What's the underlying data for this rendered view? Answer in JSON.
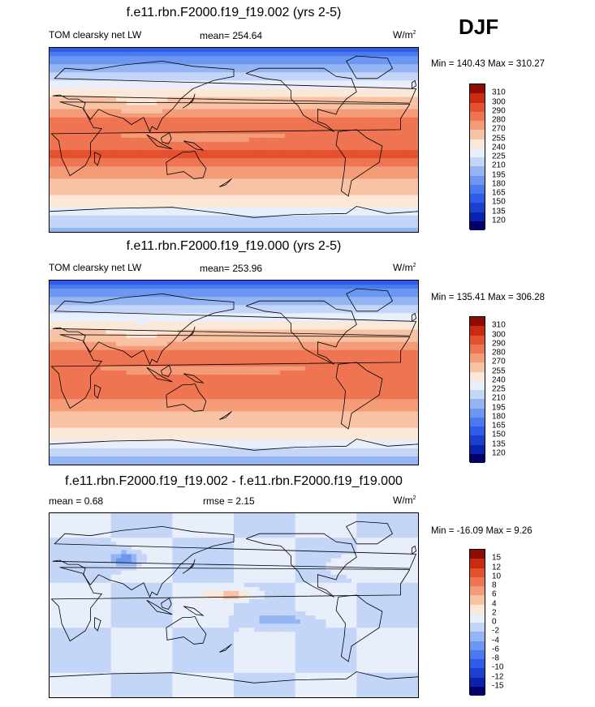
{
  "season": "DJF",
  "unit_base": "W/m",
  "unit_exp": "2",
  "panels": [
    {
      "title": "f.e11.rbn.F2000.f19_f19.002 (yrs 2-5)",
      "left_label": "TOM clearsky net LW",
      "center_label": "mean= 254.64",
      "minmax": "Min = 140.43 Max = 310.27"
    },
    {
      "title": "f.e11.rbn.F2000.f19_f19.000 (yrs 2-5)",
      "left_label": "TOM clearsky net LW",
      "center_label": "mean= 253.96",
      "minmax": "Min = 135.41 Max = 306.28"
    },
    {
      "title": "f.e11.rbn.F2000.f19_f19.002 - f.e11.rbn.F2000.f19_f19.000",
      "left_label": "mean =   0.68",
      "center_label": "rmse =   2.15",
      "minmax": "Min = -16.09 Max =   9.26"
    }
  ],
  "chart_data": [
    {
      "type": "heatmap",
      "title": "f.e11.rbn.F2000.f19_f19.002 (yrs 2-5)",
      "variable": "TOM clearsky net LW",
      "mean": 254.64,
      "min": 140.43,
      "max": 310.27,
      "contour_levels": [
        120,
        135,
        150,
        165,
        180,
        195,
        210,
        225,
        240,
        255,
        270,
        280,
        290,
        300,
        310
      ],
      "colors": [
        "#04006a",
        "#0a22b0",
        "#1c3fd0",
        "#2f5ce6",
        "#4a7aef",
        "#6b96f2",
        "#95b4f3",
        "#c4d6f7",
        "#e8eefa",
        "#fce8d8",
        "#f8c3a4",
        "#f49b78",
        "#ef7452",
        "#e4512f",
        "#c92b10",
        "#8f0c05"
      ]
    },
    {
      "type": "heatmap",
      "title": "f.e11.rbn.F2000.f19_f19.000 (yrs 2-5)",
      "variable": "TOM clearsky net LW",
      "mean": 253.96,
      "min": 135.41,
      "max": 306.28,
      "contour_levels": [
        120,
        135,
        150,
        165,
        180,
        195,
        210,
        225,
        240,
        255,
        270,
        280,
        290,
        300,
        310
      ],
      "colors": [
        "#04006a",
        "#0a22b0",
        "#1c3fd0",
        "#2f5ce6",
        "#4a7aef",
        "#6b96f2",
        "#95b4f3",
        "#c4d6f7",
        "#e8eefa",
        "#fce8d8",
        "#f8c3a4",
        "#f49b78",
        "#ef7452",
        "#e4512f",
        "#c92b10",
        "#8f0c05"
      ]
    },
    {
      "type": "heatmap",
      "title": "f.e11.rbn.F2000.f19_f19.002 - f.e11.rbn.F2000.f19_f19.000",
      "mean": 0.68,
      "rmse": 2.15,
      "min": -16.09,
      "max": 9.26,
      "contour_levels": [
        -15,
        -12,
        -10,
        -8,
        -6,
        -4,
        -2,
        0,
        2,
        4,
        6,
        8,
        10,
        12,
        15
      ],
      "colors": [
        "#04006a",
        "#0a22b0",
        "#1c3fd0",
        "#2f5ce6",
        "#4a7aef",
        "#6b96f2",
        "#95b4f3",
        "#c4d6f7",
        "#e8eefa",
        "#fce8d8",
        "#f8c3a4",
        "#f49b78",
        "#ef7452",
        "#e4512f",
        "#c92b10",
        "#8f0c05"
      ]
    }
  ]
}
